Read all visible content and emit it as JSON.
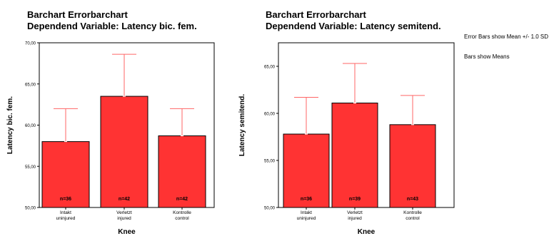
{
  "legend_notes": [
    "Error Bars show Mean +/- 1.0 SD",
    "Bars show Means"
  ],
  "chart_data": [
    {
      "type": "bar",
      "title": "Barchart Errorbarchart",
      "subtitle": "Dependend Variable: Latency bic. fem.",
      "xlabel": "Knee",
      "ylabel": "Latency bic. fem.",
      "ylim": [
        50,
        70
      ],
      "yticks": [
        "50,00",
        "55,00",
        "60,00",
        "65,00",
        "70,00"
      ],
      "categories": [
        [
          "Intakt",
          "uninjured"
        ],
        [
          "Verletzt",
          "injured"
        ],
        [
          "Kontrolle",
          "control"
        ]
      ],
      "values": [
        58.0,
        63.5,
        58.7
      ],
      "error_sd": [
        4.0,
        5.1,
        3.3
      ],
      "n_labels": [
        "n=36",
        "n=42",
        "n=42"
      ],
      "colors": {
        "bar": "#ff3333",
        "error": "#ff6666"
      }
    },
    {
      "type": "bar",
      "title": "Barchart Errorbarchart",
      "subtitle": "Dependend Variable: Latency semitend.",
      "xlabel": "Knee",
      "ylabel": "Latency semitend.",
      "ylim": [
        50,
        67.5
      ],
      "yticks": [
        "50,00",
        "55,00",
        "60,00",
        "65,00"
      ],
      "categories": [
        [
          "Intakt",
          "uninjured"
        ],
        [
          "Verletzt",
          "injured"
        ],
        [
          "Kontrolle",
          "control"
        ]
      ],
      "values": [
        57.8,
        61.1,
        58.8
      ],
      "error_sd": [
        3.9,
        4.2,
        3.1
      ],
      "n_labels": [
        "n=36",
        "n=39",
        "n=43"
      ],
      "colors": {
        "bar": "#ff3333",
        "error": "#ff6666"
      }
    }
  ]
}
